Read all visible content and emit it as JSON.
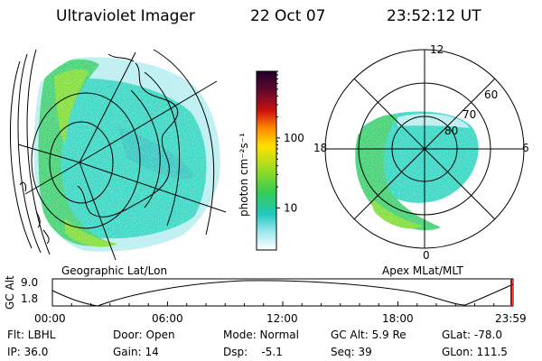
{
  "header": {
    "instrument": "Ultraviolet Imager",
    "date": "22 Oct 07",
    "time": "23:52:12 UT"
  },
  "left_panel": {
    "caption": "Geographic Lat/Lon"
  },
  "right_panel": {
    "caption": "Apex MLat/MLT",
    "lat_labels": [
      "80",
      "70",
      "60"
    ],
    "mlt_labels": {
      "top": "12",
      "left": "18",
      "right": "6",
      "bottom": "0"
    }
  },
  "colorbar": {
    "unit_label": "photon cm⁻²s⁻¹",
    "ticks": [
      "100",
      "10"
    ],
    "tick_values": [
      100,
      10
    ],
    "scale": "log",
    "range": [
      2.5,
      900
    ]
  },
  "timeline": {
    "axis_label": "GC Alt",
    "y_ticks": [
      "9.0",
      "1.8"
    ],
    "x_ticks": [
      "00:00",
      "06:00",
      "12:00",
      "18:00",
      "23:59"
    ],
    "curve_color": "#000000",
    "marker_color": "#cc0000"
  },
  "info": {
    "row1": [
      "Flt: LBHL",
      "Door: Open",
      "Mode: Normal",
      "GC Alt: 5.9 Re",
      "GLat: -78.0"
    ],
    "row2": [
      "IP: 36.0",
      "Gain: 14",
      "Dsp:    -5.1",
      "Seq: 39",
      "GLon: 111.5"
    ]
  },
  "colors": {
    "aurora_high": "#33cc55",
    "aurora_mid": "#33d6c2",
    "aurora_low": "#b8eef0",
    "grid": "#000000"
  }
}
